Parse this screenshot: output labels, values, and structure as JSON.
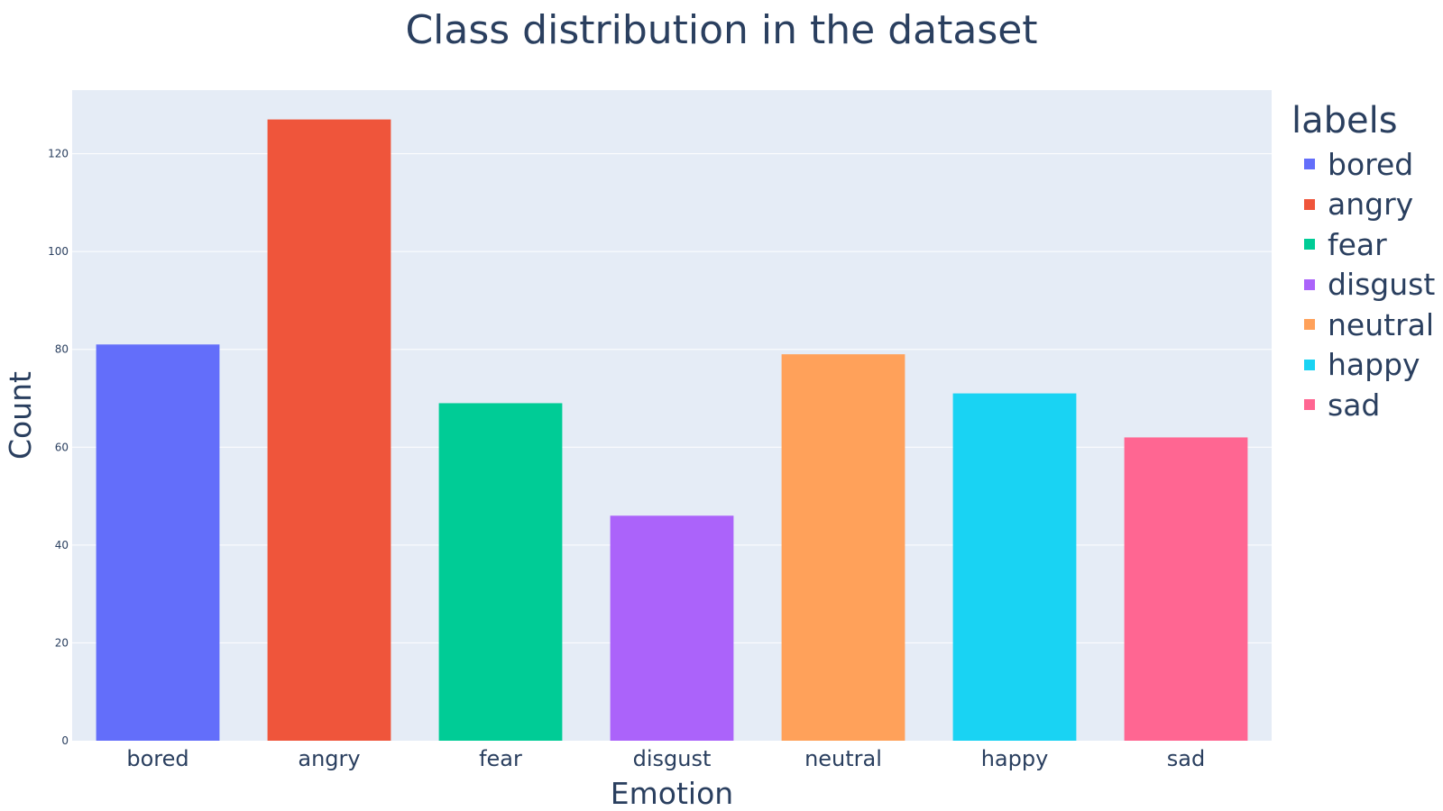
{
  "chart_data": {
    "type": "bar",
    "title": "Class distribution in the dataset",
    "xlabel": "Emotion",
    "ylabel": "Count",
    "categories": [
      "bored",
      "angry",
      "fear",
      "disgust",
      "neutral",
      "happy",
      "sad"
    ],
    "values": [
      81,
      127,
      69,
      46,
      79,
      71,
      62
    ],
    "colors": [
      "#636efa",
      "#ef553b",
      "#00cc96",
      "#ab63fa",
      "#ffa15a",
      "#19d3f3",
      "#ff6692"
    ],
    "ylim": [
      0,
      133
    ],
    "yticks": [
      0,
      20,
      40,
      60,
      80,
      100,
      120
    ],
    "grid": true,
    "legend": {
      "title": "labels",
      "placement": "right",
      "entries": [
        "bored",
        "angry",
        "fear",
        "disgust",
        "neutral",
        "happy",
        "sad"
      ]
    },
    "plot_background": "#e5ecf6"
  }
}
